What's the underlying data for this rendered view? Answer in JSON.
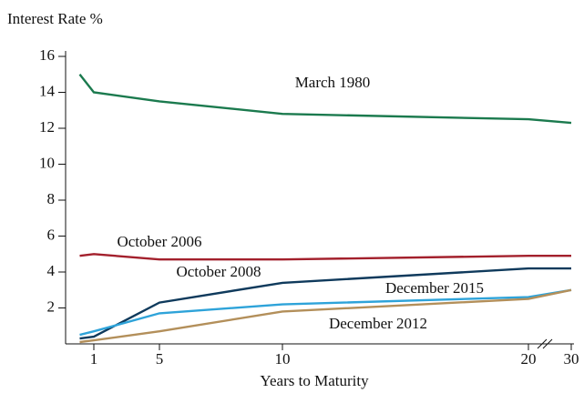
{
  "chart_data": {
    "type": "line",
    "y_label": "Interest Rate %",
    "x_label": "Years to Maturity",
    "x": [
      0.5,
      1,
      5,
      10,
      20,
      30
    ],
    "xlim": [
      0,
      30
    ],
    "xticks": [
      1,
      5,
      10,
      20,
      30
    ],
    "ylim": [
      0,
      16
    ],
    "yticks": [
      2,
      4,
      6,
      8,
      10,
      12,
      14,
      16
    ],
    "x_axis_break": true,
    "series": [
      {
        "name": "March 1980",
        "color": "#1b7a4e",
        "values": [
          15,
          14,
          13.5,
          12.8,
          12.5,
          12.3
        ]
      },
      {
        "name": "October 2006",
        "color": "#a3202c",
        "values": [
          4.9,
          5.0,
          4.7,
          4.7,
          4.9,
          4.9
        ]
      },
      {
        "name": "October 2008",
        "color": "#0f3a5c",
        "values": [
          0.3,
          0.4,
          2.3,
          3.4,
          4.2,
          4.2
        ]
      },
      {
        "name": "December 2015",
        "color": "#2ea3d9",
        "values": [
          0.5,
          0.7,
          1.7,
          2.2,
          2.6,
          3.0
        ]
      },
      {
        "name": "December 2012",
        "color": "#b38f5a",
        "values": [
          0.1,
          0.2,
          0.7,
          1.8,
          2.5,
          3.0
        ]
      }
    ]
  }
}
